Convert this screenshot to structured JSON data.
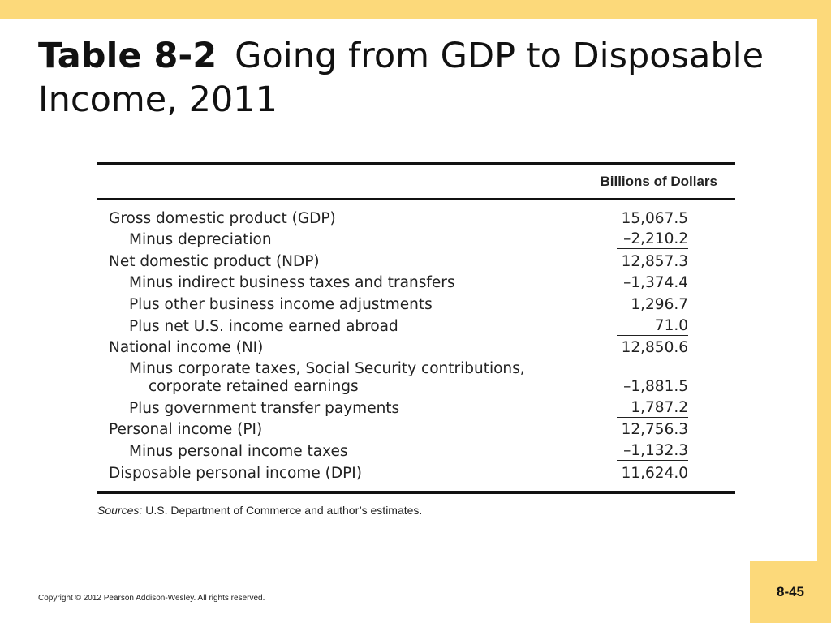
{
  "slide": {
    "title_num": "Table 8-2",
    "title_text": "Going from GDP to Disposable Income, 2011",
    "copyright": "Copyright © 2012 Pearson Addison-Wesley. All rights reserved.",
    "page_number": "8-45",
    "colors": {
      "accent": "#fcd97a",
      "background": "#ffffff",
      "text": "#111111"
    }
  },
  "table": {
    "column_header": "Billions of Dollars",
    "rows": [
      {
        "label": "Gross domestic product (GDP)",
        "value": "15,067.5"
      },
      {
        "label": "Minus depreciation",
        "value": "–2,210.2"
      },
      {
        "label": "Net domestic product (NDP)",
        "value": "12,857.3"
      },
      {
        "label": "Minus indirect business taxes and transfers",
        "value": "–1,374.4"
      },
      {
        "label": "Plus other business income adjustments",
        "value": "1,296.7"
      },
      {
        "label": "Plus net U.S. income earned abroad",
        "value": "71.0"
      },
      {
        "label": "National income (NI)",
        "value": "12,850.6"
      },
      {
        "label": "Minus corporate taxes, Social Security contributions,",
        "label2": "corporate retained earnings",
        "value": "–1,881.5"
      },
      {
        "label": "Plus government transfer payments",
        "value": "1,787.2"
      },
      {
        "label": "Personal income (PI)",
        "value": "12,756.3"
      },
      {
        "label": "Minus personal income taxes",
        "value": "–1,132.3"
      },
      {
        "label": "Disposable personal income (DPI)",
        "value": "11,624.0"
      }
    ],
    "sources_label": "Sources:",
    "sources_text": "U.S. Department of Commerce and author’s estimates."
  }
}
